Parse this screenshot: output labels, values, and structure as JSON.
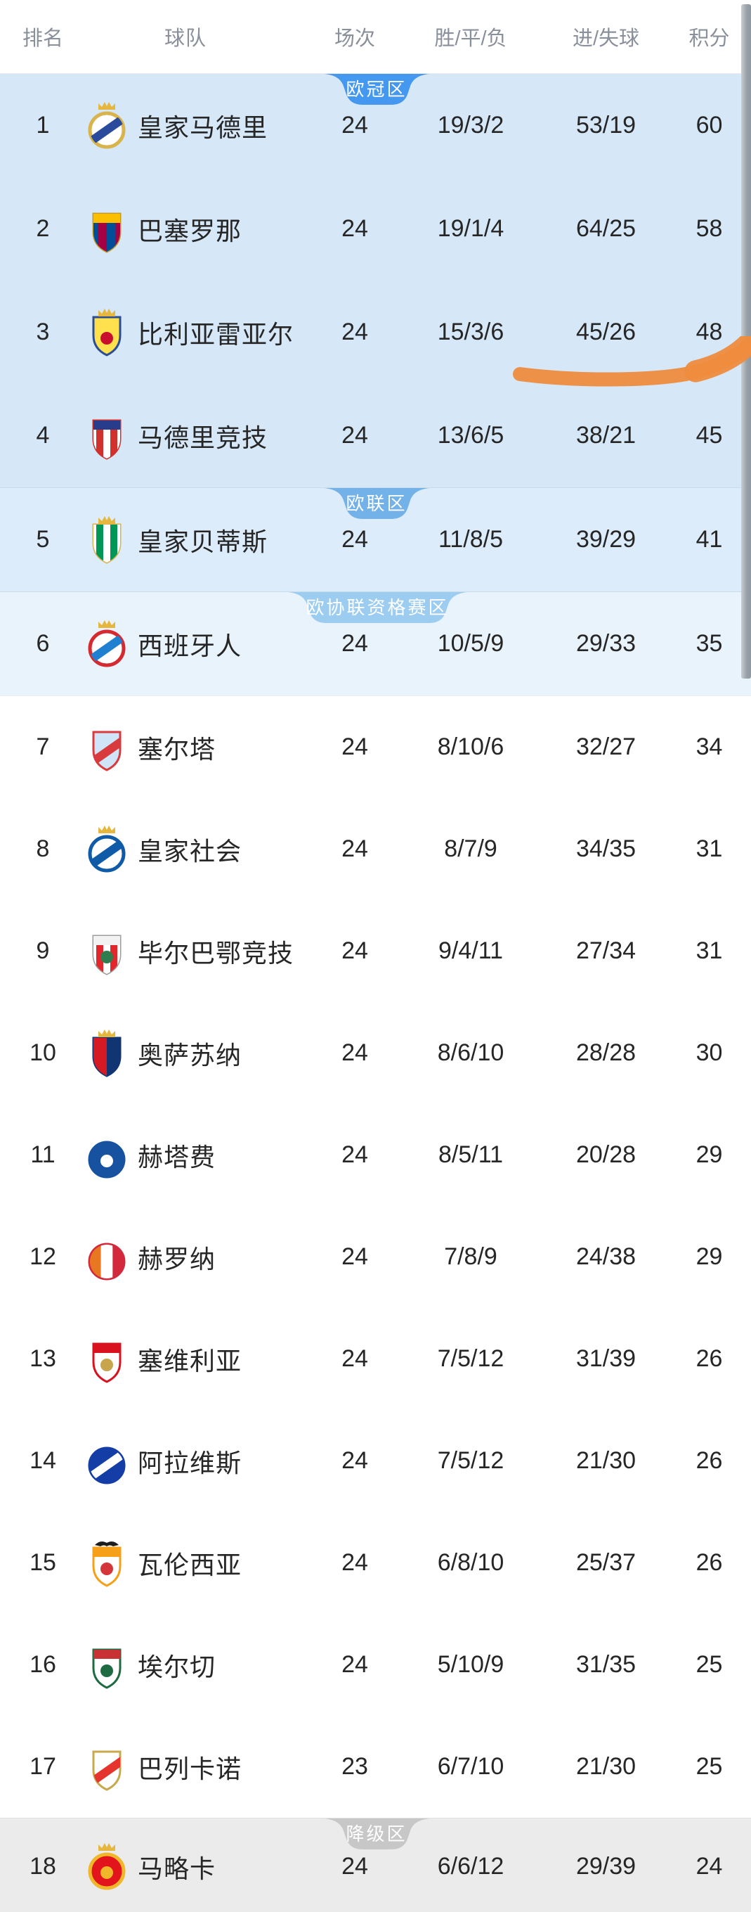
{
  "header": {
    "columns": [
      "排名",
      "球队",
      "场次",
      "胜/平/负",
      "进/失球",
      "积分"
    ]
  },
  "colors": {
    "header_text": "#8a909b",
    "row_text": "#262626",
    "annotation_orange": "#ef8c3e",
    "scrollbar_thumb": "#99a1a9"
  },
  "scrollbar": {
    "visible": true,
    "color": "#99a1a9"
  },
  "annotation": {
    "type": "hand-drawn-marker-underline",
    "color": "#ef8c3e",
    "target": "rank 3 进/失球 45/26"
  },
  "zones": [
    {
      "id": "champions-league",
      "label": "欧冠区",
      "badge_color": "#4598ef",
      "badge_width": 150,
      "background": "#d6e8f8",
      "rows": [
        {
          "rank": "1",
          "team": "皇家马德里",
          "icon": "real-madrid-crest",
          "played": "24",
          "win_draw_loss": "19/3/2",
          "goals_for_against": "53/19",
          "points": "60",
          "crest": {
            "shape": "circle",
            "base": "#ffffff",
            "ring": "#d9b34b",
            "diag": "#2a4b9b",
            "crown": true
          }
        },
        {
          "rank": "2",
          "team": "巴塞罗那",
          "icon": "barcelona-crest",
          "played": "24",
          "win_draw_loss": "19/1/4",
          "goals_for_against": "64/25",
          "points": "58",
          "crest": {
            "shape": "shield",
            "base": "#a50044",
            "stripes": [
              "#004d98",
              "#a50044",
              "#004d98",
              "#a50044"
            ],
            "band": "#fcbf00",
            "border": "#c29b2c"
          }
        },
        {
          "rank": "3",
          "team": "比利亚雷亚尔",
          "icon": "villarreal-crest",
          "played": "24",
          "win_draw_loss": "15/3/6",
          "goals_for_against": "45/26",
          "points": "48",
          "crest": {
            "shape": "shield",
            "base": "#ffe14d",
            "border": "#2b4d96",
            "dot": "#c8102e",
            "crown": true
          }
        },
        {
          "rank": "4",
          "team": "马德里竞技",
          "icon": "atletico-madrid-crest",
          "played": "24",
          "win_draw_loss": "13/6/5",
          "goals_for_against": "38/21",
          "points": "45",
          "crest": {
            "shape": "shield",
            "base": "#ffffff",
            "stripes": [
              "#ffffff",
              "#d0312d",
              "#ffffff",
              "#d0312d",
              "#ffffff"
            ],
            "band": "#273c8b",
            "border": "#d0312d"
          }
        }
      ]
    },
    {
      "id": "europa-league",
      "label": "欧联区",
      "badge_color": "#72b2e8",
      "badge_width": 150,
      "background": "#dcecfa",
      "rows": [
        {
          "rank": "5",
          "team": "皇家贝蒂斯",
          "icon": "real-betis-crest",
          "played": "24",
          "win_draw_loss": "11/8/5",
          "goals_for_against": "39/29",
          "points": "41",
          "crest": {
            "shape": "shield",
            "base": "#ffffff",
            "stripes": [
              "#ffffff",
              "#009655",
              "#ffffff",
              "#009655",
              "#ffffff"
            ],
            "border": "#d9b34b",
            "crown": true
          }
        }
      ]
    },
    {
      "id": "conference-league-qualification",
      "label": "欧协联资格赛区",
      "badge_color": "#9ccdf1",
      "badge_width": 256,
      "background": "#e9f3fc",
      "rows": [
        {
          "rank": "6",
          "team": "西班牙人",
          "icon": "espanyol-crest",
          "played": "24",
          "win_draw_loss": "10/5/9",
          "goals_for_against": "29/33",
          "points": "35",
          "crest": {
            "shape": "circle",
            "base": "#ffffff",
            "ring": "#d42a30",
            "diag": "#1f7fd0",
            "crown": true
          }
        }
      ]
    },
    {
      "id": "mid-table",
      "label": "",
      "badge_color": "",
      "badge_width": 0,
      "background": "#ffffff",
      "rows": [
        {
          "rank": "7",
          "team": "塞尔塔",
          "icon": "celta-vigo-crest",
          "played": "24",
          "win_draw_loss": "8/10/6",
          "goals_for_against": "32/27",
          "points": "34",
          "crest": {
            "shape": "shield",
            "base": "#cfe4f7",
            "border": "#d93a3e",
            "diag": "#d93a3e"
          }
        },
        {
          "rank": "8",
          "team": "皇家社会",
          "icon": "real-sociedad-crest",
          "played": "24",
          "win_draw_loss": "8/7/9",
          "goals_for_against": "34/35",
          "points": "31",
          "crest": {
            "shape": "circle",
            "base": "#ffffff",
            "ring": "#0f5ba7",
            "diag": "#0f5ba7",
            "crown": true
          }
        },
        {
          "rank": "9",
          "team": "毕尔巴鄂竞技",
          "icon": "athletic-bilbao-crest",
          "played": "24",
          "win_draw_loss": "9/4/11",
          "goals_for_against": "27/34",
          "points": "31",
          "crest": {
            "shape": "shield",
            "base": "#ffffff",
            "stripes": [
              "#ffffff",
              "#e2272c",
              "#ffffff",
              "#e2272c",
              "#ffffff"
            ],
            "band": "#f2f2f2",
            "border": "#9c9c9c",
            "dot": "#2e7d4f"
          }
        },
        {
          "rank": "10",
          "team": "奥萨苏纳",
          "icon": "osasuna-crest",
          "played": "24",
          "win_draw_loss": "8/6/10",
          "goals_for_against": "28/28",
          "points": "30",
          "crest": {
            "shape": "shield",
            "base": "#d61a24",
            "stripes": [
              "#d61a24",
              "#103572"
            ],
            "border": "#103572",
            "crown": true
          }
        },
        {
          "rank": "11",
          "team": "赫塔费",
          "icon": "getafe-crest",
          "played": "24",
          "win_draw_loss": "8/5/11",
          "goals_for_against": "20/28",
          "points": "29",
          "crest": {
            "shape": "circle",
            "base": "#1652a0",
            "ring": "#1652a0",
            "dot": "#ffffff"
          }
        },
        {
          "rank": "12",
          "team": "赫罗纳",
          "icon": "girona-crest",
          "played": "24",
          "win_draw_loss": "7/8/9",
          "goals_for_against": "24/38",
          "points": "29",
          "crest": {
            "shape": "circle",
            "base": "#ffffff",
            "ring": "#d22a3c",
            "stripes": [
              "#e87722",
              "#ffffff",
              "#d22a3c"
            ]
          }
        },
        {
          "rank": "13",
          "team": "塞维利亚",
          "icon": "sevilla-crest",
          "played": "24",
          "win_draw_loss": "7/5/12",
          "goals_for_against": "31/39",
          "points": "26",
          "crest": {
            "shape": "shield",
            "base": "#ffffff",
            "band": "#d8121f",
            "dot": "#c8a44c",
            "border": "#d8121f"
          }
        },
        {
          "rank": "14",
          "team": "阿拉维斯",
          "icon": "alaves-crest",
          "played": "24",
          "win_draw_loss": "7/5/12",
          "goals_for_against": "21/30",
          "points": "26",
          "crest": {
            "shape": "circle",
            "base": "#143da6",
            "ring": "#143da6",
            "diag": "#ffffff"
          }
        },
        {
          "rank": "15",
          "team": "瓦伦西亚",
          "icon": "valencia-crest",
          "played": "24",
          "win_draw_loss": "6/8/10",
          "goals_for_against": "25/37",
          "points": "26",
          "crest": {
            "shape": "shield",
            "base": "#ffffff",
            "band": "#f6a01a",
            "dot": "#d3363b",
            "border": "#f6a01a",
            "bat": true
          }
        },
        {
          "rank": "16",
          "team": "埃尔切",
          "icon": "elche-crest",
          "played": "24",
          "win_draw_loss": "5/10/9",
          "goals_for_against": "31/35",
          "points": "25",
          "crest": {
            "shape": "shield",
            "base": "#ffffff",
            "band": "#c93235",
            "dot": "#1e6b43",
            "border": "#1e6b43"
          }
        },
        {
          "rank": "17",
          "team": "巴列卡诺",
          "icon": "rayo-vallecano-crest",
          "played": "23",
          "win_draw_loss": "6/7/10",
          "goals_for_against": "21/30",
          "points": "25",
          "crest": {
            "shape": "shield",
            "base": "#ffffff",
            "diag": "#e5332d",
            "border": "#c9a84c"
          }
        }
      ]
    },
    {
      "id": "relegation",
      "label": "降级区",
      "badge_color": "#c7c7c7",
      "badge_width": 150,
      "background": "#ebebeb",
      "rows": [
        {
          "rank": "18",
          "team": "马略卡",
          "icon": "mallorca-crest",
          "played": "24",
          "win_draw_loss": "6/6/12",
          "goals_for_against": "29/39",
          "points": "24",
          "crest": {
            "shape": "circle",
            "base": "#e2141c",
            "ring": "#f0b72a",
            "dot": "#f0b72a",
            "crown": true
          }
        }
      ]
    }
  ]
}
